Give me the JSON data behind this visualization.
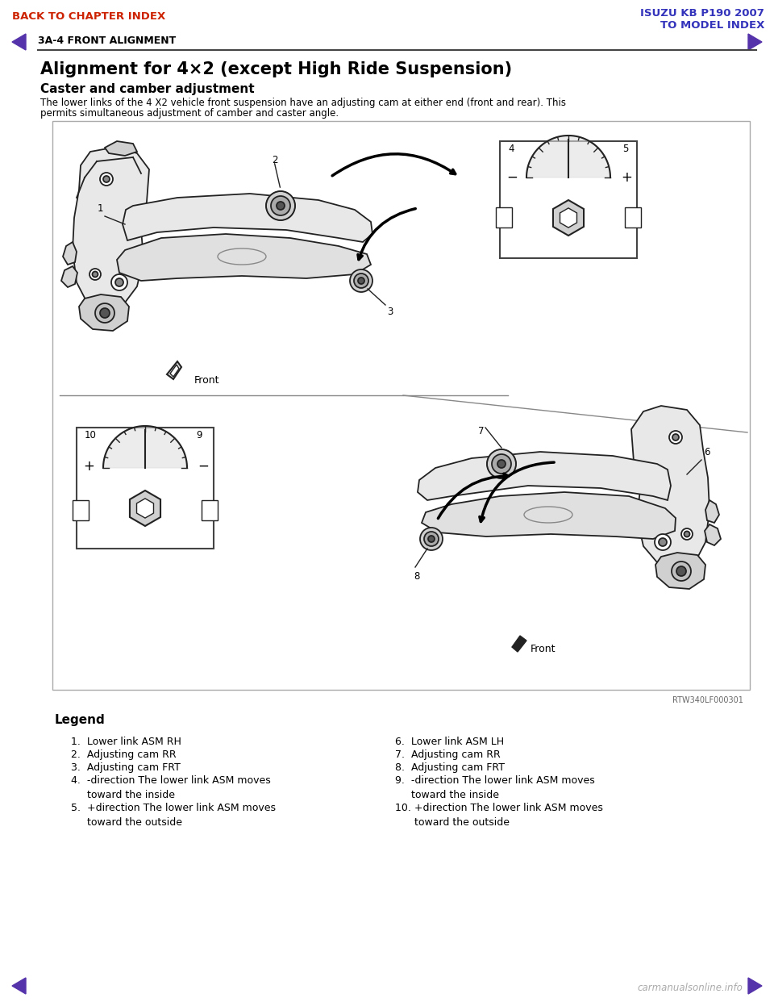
{
  "page_bg": "#ffffff",
  "header_left_text": "BACK TO CHAPTER INDEX",
  "header_left_color": "#cc2200",
  "header_right_line1": "ISUZU KB P190 2007",
  "header_right_line2": "TO MODEL INDEX",
  "header_right_color": "#3333bb",
  "section_label": "3A-4 FRONT ALIGNMENT",
  "section_label_color": "#000000",
  "arrow_nav_color": "#5533aa",
  "title_main": "Alignment for 4×2 (except High Ride Suspension)",
  "title_sub": "Caster and camber adjustment",
  "body_text_line1": "The lower links of the 4 X2 vehicle front suspension have an adjusting cam at either end (front and rear). This",
  "body_text_line2": "permits simultaneous adjustment of camber and caster angle.",
  "figure_ref": "RTW340LF000301",
  "legend_title": "Legend",
  "legend_col1_items": [
    "1.  Lower link ASM RH",
    "2.  Adjusting cam RR",
    "3.  Adjusting cam FRT",
    "4.  -direction The lower link ASM moves",
    "     toward the inside",
    "5.  +direction The lower link ASM moves",
    "     toward the outside"
  ],
  "legend_col2_items": [
    "6.  Lower link ASM LH",
    "7.  Adjusting cam RR",
    "8.  Adjusting cam FRT",
    "9.  -direction The lower link ASM moves",
    "     toward the inside",
    "10. +direction The lower link ASM moves",
    "      toward the outside"
  ],
  "footer_watermark": "carmanualsonline.info",
  "footer_watermark_color": "#aaaaaa",
  "body_font_size": 8.5,
  "legend_font_size": 9,
  "title_font_size": 15,
  "subtitle_font_size": 11,
  "diagram_line_color": "#222222",
  "diagram_fill_light": "#f0f0f0",
  "diagram_fill_mid": "#d8d8d8",
  "diagram_bg": "#ffffff"
}
